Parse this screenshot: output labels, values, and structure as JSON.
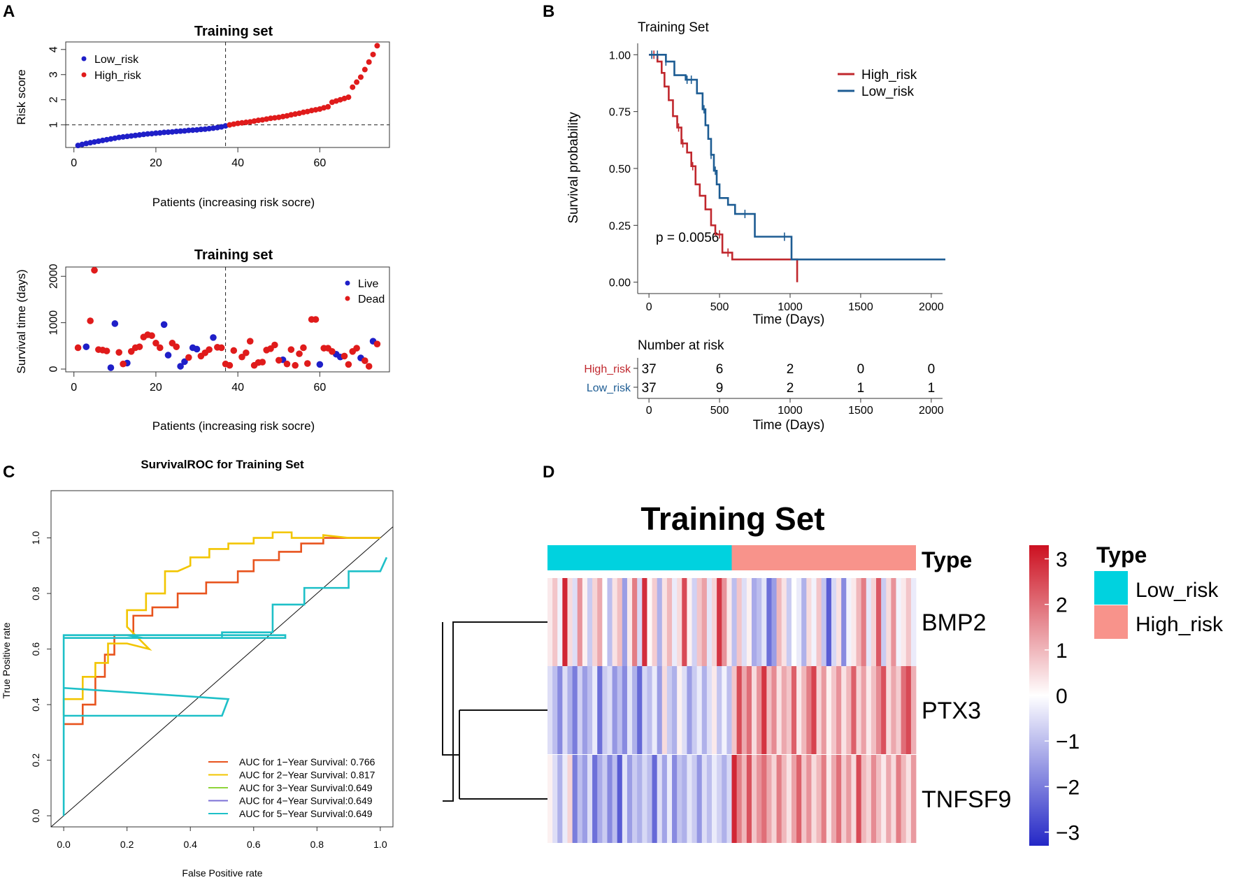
{
  "panel_labels": {
    "a": "A",
    "b": "B",
    "c": "C",
    "d": "D"
  },
  "colors": {
    "low": "#1f1fc8",
    "high": "#e01b1b",
    "km_high": "#c0272d",
    "km_low": "#1d5c93",
    "type_low": "#00d2df",
    "type_high": "#f8938b",
    "live": "#1f1fc8",
    "dead": "#e01b1b"
  },
  "chart_data": [
    {
      "id": "A_top",
      "type": "scatter",
      "title": "Training set",
      "xlabel": "Patients (increasing risk socre)",
      "ylabel": "Risk score",
      "xlim": [
        -2,
        77
      ],
      "ylim": [
        0.1,
        4.3
      ],
      "xticks": [
        0,
        20,
        40,
        60
      ],
      "yticks": [
        1,
        2,
        3,
        4
      ],
      "cutoff_x": 37,
      "cutoff_y": 1,
      "legend": [
        "Low_risk",
        "High_risk"
      ],
      "series": [
        {
          "name": "Low_risk",
          "x": [
            1,
            2,
            3,
            4,
            5,
            6,
            7,
            8,
            9,
            10,
            11,
            12,
            13,
            14,
            15,
            16,
            17,
            18,
            19,
            20,
            21,
            22,
            23,
            24,
            25,
            26,
            27,
            28,
            29,
            30,
            31,
            32,
            33,
            34,
            35,
            36,
            37
          ],
          "values": [
            0.18,
            0.22,
            0.26,
            0.29,
            0.32,
            0.35,
            0.38,
            0.41,
            0.44,
            0.47,
            0.5,
            0.52,
            0.54,
            0.56,
            0.58,
            0.6,
            0.62,
            0.64,
            0.65,
            0.67,
            0.68,
            0.7,
            0.71,
            0.72,
            0.74,
            0.75,
            0.76,
            0.78,
            0.79,
            0.8,
            0.82,
            0.83,
            0.85,
            0.87,
            0.89,
            0.92,
            0.96
          ]
        },
        {
          "name": "High_risk",
          "x": [
            38,
            39,
            40,
            41,
            42,
            43,
            44,
            45,
            46,
            47,
            48,
            49,
            50,
            51,
            52,
            53,
            54,
            55,
            56,
            57,
            58,
            59,
            60,
            61,
            62,
            63,
            64,
            65,
            66,
            67,
            68,
            69,
            70,
            71,
            72,
            73,
            74
          ],
          "values": [
            1.0,
            1.03,
            1.06,
            1.08,
            1.1,
            1.12,
            1.15,
            1.18,
            1.2,
            1.23,
            1.26,
            1.28,
            1.3,
            1.33,
            1.36,
            1.4,
            1.43,
            1.46,
            1.5,
            1.53,
            1.57,
            1.6,
            1.63,
            1.68,
            1.72,
            1.9,
            1.95,
            2.0,
            2.05,
            2.1,
            2.5,
            2.7,
            2.9,
            3.2,
            3.5,
            3.8,
            4.15
          ]
        }
      ]
    },
    {
      "id": "A_bottom",
      "type": "scatter",
      "title": "Training set",
      "xlabel": "Patients (increasing risk socre)",
      "ylabel": "Survival time (days)",
      "xlim": [
        -2,
        77
      ],
      "ylim": [
        -60,
        2200
      ],
      "xticks": [
        0,
        20,
        40,
        60
      ],
      "yticks": [
        0,
        1000,
        2000
      ],
      "cutoff_x": 37,
      "legend": [
        "Live",
        "Dead"
      ],
      "series": [
        {
          "name": "Live",
          "x": [
            3,
            9,
            10,
            13,
            22,
            23,
            26,
            27,
            29,
            30,
            34,
            51,
            60,
            64,
            65,
            70,
            73
          ],
          "values": [
            480,
            30,
            980,
            130,
            960,
            300,
            60,
            160,
            460,
            430,
            680,
            200,
            100,
            320,
            260,
            240,
            600
          ]
        },
        {
          "name": "Dead",
          "x": [
            1,
            4,
            5,
            6,
            7,
            8,
            11,
            12,
            14,
            15,
            16,
            17,
            18,
            19,
            20,
            21,
            24,
            25,
            28,
            31,
            32,
            33,
            35,
            36,
            37,
            38,
            39,
            41,
            42,
            43,
            44,
            45,
            46,
            47,
            48,
            49,
            50,
            52,
            53,
            54,
            55,
            56,
            57,
            58,
            59,
            61,
            62,
            63,
            66,
            67,
            68,
            69,
            71,
            72,
            74
          ],
          "values": [
            460,
            1040,
            2130,
            420,
            410,
            390,
            360,
            110,
            380,
            460,
            480,
            690,
            740,
            720,
            560,
            460,
            560,
            480,
            250,
            280,
            350,
            420,
            470,
            460,
            110,
            80,
            400,
            260,
            350,
            600,
            80,
            140,
            150,
            410,
            440,
            520,
            190,
            110,
            420,
            80,
            330,
            460,
            120,
            1070,
            1070,
            450,
            450,
            380,
            280,
            100,
            380,
            450,
            180,
            60,
            540
          ]
        }
      ]
    },
    {
      "id": "B_km",
      "type": "line",
      "title": "Training Set",
      "xlabel": "Time (Days)",
      "ylabel": "Survival probability",
      "xlim": [
        -80,
        2080
      ],
      "ylim": [
        -0.05,
        1.05
      ],
      "xticks": [
        0,
        500,
        1000,
        1500,
        2000
      ],
      "yticks": [
        0.0,
        0.25,
        0.5,
        0.75,
        1.0
      ],
      "ytick_labels": [
        "0.00",
        "0.25",
        "0.50",
        "0.75",
        "1.00"
      ],
      "pvalue": "p = 0.0056",
      "legend": [
        "High_risk",
        "Low_risk"
      ],
      "series": [
        {
          "name": "High_risk",
          "x": [
            0,
            60,
            90,
            110,
            140,
            170,
            200,
            230,
            270,
            300,
            330,
            360,
            400,
            440,
            470,
            520,
            590,
            1050,
            1050
          ],
          "values": [
            1.0,
            0.97,
            0.92,
            0.86,
            0.8,
            0.73,
            0.68,
            0.61,
            0.57,
            0.51,
            0.43,
            0.38,
            0.32,
            0.25,
            0.21,
            0.13,
            0.1,
            0.1,
            0.0
          ],
          "censors_x": [
            35,
            210,
            240,
            310,
            500,
            560
          ]
        },
        {
          "name": "Low_risk",
          "x": [
            0,
            120,
            180,
            260,
            340,
            380,
            400,
            420,
            440,
            460,
            480,
            500,
            560,
            610,
            750,
            1000,
            1010,
            2100
          ],
          "values": [
            1.0,
            0.97,
            0.91,
            0.89,
            0.83,
            0.76,
            0.69,
            0.63,
            0.56,
            0.49,
            0.43,
            0.37,
            0.34,
            0.3,
            0.2,
            0.2,
            0.1,
            0.1
          ],
          "censors_x": [
            20,
            60,
            120,
            270,
            300,
            390,
            440,
            470,
            680,
            960
          ]
        }
      ],
      "risk_table": {
        "title": "Number at risk",
        "rows": [
          {
            "label": "High_risk",
            "counts": [
              "37",
              "6",
              "2",
              "0",
              "0"
            ]
          },
          {
            "label": "Low_risk",
            "counts": [
              "37",
              "9",
              "2",
              "1",
              "1"
            ]
          }
        ],
        "xlabel": "Time (Days)"
      }
    },
    {
      "id": "C_roc",
      "type": "line",
      "title": "SurvivalROC for Training Set",
      "xlabel": "False Positive rate",
      "ylabel": "True Positive rate",
      "xlim": [
        -0.04,
        1.04
      ],
      "ylim": [
        -0.04,
        1.17
      ],
      "xticks": [
        0.0,
        0.2,
        0.4,
        0.6,
        0.8,
        1.0
      ],
      "xtick_labels": [
        "0.0",
        "0.2",
        "0.4",
        "0.6",
        "0.8",
        "1.0"
      ],
      "yticks": [
        0.0,
        0.2,
        0.4,
        0.6,
        0.8,
        1.0
      ],
      "ytick_labels": [
        "0.0",
        "0.2",
        "0.4",
        "0.6",
        "0.8",
        "1.0"
      ],
      "legend": [
        "AUC for 1−Year Survival: 0.766",
        "AUC for 2−Year Survival: 0.817",
        "AUC for 3−Year Survival:0.649",
        "AUC for 4−Year Survival:0.649",
        "AUC for 5−Year Survival:0.649"
      ],
      "series": [
        {
          "name": "AUC for 1−Year Survival: 0.766",
          "color": "#e8541e",
          "x": [
            0,
            0.06,
            0.06,
            0.1,
            0.1,
            0.13,
            0.13,
            0.16,
            0.16,
            0.22,
            0.22,
            0.28,
            0.28,
            0.36,
            0.36,
            0.45,
            0.45,
            0.55,
            0.55,
            0.6,
            0.6,
            0.68,
            0.68,
            0.75,
            0.75,
            0.82,
            0.82,
            0.9,
            0.9,
            1.0
          ],
          "values": [
            0.33,
            0.33,
            0.4,
            0.4,
            0.5,
            0.5,
            0.58,
            0.58,
            0.65,
            0.65,
            0.72,
            0.72,
            0.75,
            0.75,
            0.8,
            0.8,
            0.84,
            0.84,
            0.88,
            0.88,
            0.92,
            0.92,
            0.95,
            0.95,
            0.98,
            0.98,
            1.0,
            1.0,
            1.0,
            1.0
          ]
        },
        {
          "name": "AUC for 2−Year Survival: 0.817",
          "color": "#f2c500",
          "x": [
            0,
            0,
            0.06,
            0.06,
            0.1,
            0.1,
            0.14,
            0.14,
            0.2,
            0.27,
            0.2,
            0.2,
            0.26,
            0.26,
            0.32,
            0.32,
            0.36,
            0.4,
            0.4,
            0.46,
            0.46,
            0.52,
            0.52,
            0.6,
            0.6,
            0.66,
            0.66,
            0.72,
            0.72,
            0.82,
            0.82,
            0.9,
            1.0
          ],
          "values": [
            0.36,
            0.42,
            0.42,
            0.5,
            0.5,
            0.55,
            0.55,
            0.62,
            0.62,
            0.6,
            0.68,
            0.74,
            0.74,
            0.8,
            0.8,
            0.88,
            0.88,
            0.9,
            0.93,
            0.93,
            0.96,
            0.96,
            0.98,
            0.98,
            1.0,
            1.0,
            1.02,
            1.02,
            1.0,
            1.0,
            1.01,
            1.0,
            1.0
          ]
        },
        {
          "name": "AUC for 3−Year Survival:0.649",
          "color": "#8ed43a",
          "x": [],
          "values": []
        },
        {
          "name": "AUC for 4−Year Survival:0.649",
          "color": "#7b6fd6",
          "x": [],
          "values": []
        },
        {
          "name": "AUC for 5−Year Survival:0.649",
          "color": "#1ec0c8",
          "x": [
            0,
            0,
            0.0,
            0.52,
            0.5,
            0.0,
            0.0,
            0.7,
            0.7,
            0.0,
            0.0,
            0.2,
            0.25,
            0.5,
            0.5,
            0.66,
            0.66,
            0.76,
            0.76,
            0.9,
            0.9,
            1.0,
            1.02
          ],
          "values": [
            0,
            0.36,
            0.46,
            0.42,
            0.36,
            0.36,
            0.65,
            0.65,
            0.64,
            0.64,
            0.65,
            0.65,
            0.64,
            0.64,
            0.66,
            0.66,
            0.76,
            0.76,
            0.82,
            0.82,
            0.88,
            0.88,
            0.93
          ]
        }
      ]
    },
    {
      "id": "D_heatmap",
      "type": "heatmap",
      "title": "Training Set",
      "rows": [
        "BMP2",
        "PTX3",
        "TNFSF9"
      ],
      "annotation_label": "Type",
      "legend_title": "Type",
      "legend": [
        "Low_risk",
        "High_risk"
      ],
      "n_low": 37,
      "n_high": 37,
      "colorbar_ticks": [
        "3",
        "2",
        "1",
        "0",
        "−1",
        "−2",
        "−3"
      ],
      "colorbar_values": [
        3,
        2,
        1,
        0,
        -1,
        -2,
        -3
      ],
      "values": [
        [
          0.3,
          0.8,
          -0.2,
          3.0,
          0.5,
          -0.5,
          1.5,
          0.2,
          -0.8,
          0.6,
          1.2,
          0.0,
          -1.0,
          0.4,
          0.9,
          -1.5,
          0.3,
          1.8,
          -0.6,
          2.9,
          0.1,
          0.7,
          -1.2,
          0.4,
          1.0,
          -0.3,
          0.5,
          2.5,
          0.2,
          -0.7,
          0.8,
          1.3,
          -0.4,
          0.6,
          2.8,
          1.5,
          0.3,
          -1.0,
          0.8,
          -0.5,
          0.2,
          -1.3,
          -1.0,
          -0.4,
          -2.2,
          -1.5,
          1.0,
          0.4,
          -0.8,
          0.0,
          -0.3,
          -1.2,
          0.5,
          -0.2,
          0.8,
          -0.9,
          -2.5,
          -0.6,
          0.4,
          -1.8,
          -0.2,
          0.3,
          1.0,
          1.8,
          -0.4,
          0.6,
          2.3,
          -0.8,
          0.5,
          1.5,
          -0.2,
          0.3,
          0.8,
          -0.3
        ],
        [
          -0.5,
          -1.0,
          -1.8,
          -0.5,
          -1.2,
          -2.0,
          -0.7,
          -1.5,
          -1.0,
          -0.3,
          -2.2,
          -0.8,
          -0.5,
          -1.6,
          -1.0,
          -1.8,
          -0.4,
          -1.2,
          -2.3,
          -0.6,
          -1.0,
          -0.3,
          -1.5,
          0.5,
          -0.8,
          -1.2,
          0.2,
          -0.5,
          -1.5,
          -0.8,
          -0.3,
          -1.2,
          -0.5,
          0.3,
          -0.9,
          -0.2,
          -1.0,
          0.8,
          2.5,
          1.2,
          2.0,
          0.5,
          1.5,
          2.8,
          0.9,
          1.6,
          0.4,
          1.2,
          0.8,
          2.2,
          0.3,
          1.0,
          1.8,
          2.6,
          0.6,
          1.4,
          0.2,
          0.8,
          1.5,
          0.4,
          1.0,
          2.2,
          0.6,
          1.3,
          0.3,
          0.9,
          1.6,
          2.4,
          0.5,
          1.2,
          0.7,
          2.0,
          2.5,
          1.1
        ],
        [
          0.2,
          -0.5,
          -1.2,
          -0.3,
          0.6,
          -2.0,
          -1.0,
          -1.5,
          -0.5,
          -2.2,
          -1.3,
          -0.8,
          -1.8,
          -1.0,
          -2.5,
          -0.4,
          -1.5,
          -0.8,
          -1.2,
          -0.6,
          -1.0,
          -2.3,
          -0.5,
          -1.4,
          -0.3,
          -1.8,
          -0.9,
          -1.2,
          -0.4,
          -0.8,
          -1.6,
          -0.5,
          -1.0,
          -0.3,
          -0.7,
          -1.2,
          -0.6,
          3.0,
          1.8,
          1.0,
          2.4,
          0.8,
          1.5,
          2.0,
          1.2,
          0.6,
          1.8,
          1.0,
          0.4,
          1.3,
          2.2,
          0.8,
          1.5,
          0.5,
          1.0,
          1.8,
          0.3,
          1.2,
          2.0,
          0.7,
          1.4,
          0.5,
          2.5,
          1.0,
          0.6,
          1.6,
          0.9,
          0.3,
          1.2,
          0.5,
          1.8,
          1.0,
          0.4,
          1.4
        ]
      ]
    }
  ]
}
